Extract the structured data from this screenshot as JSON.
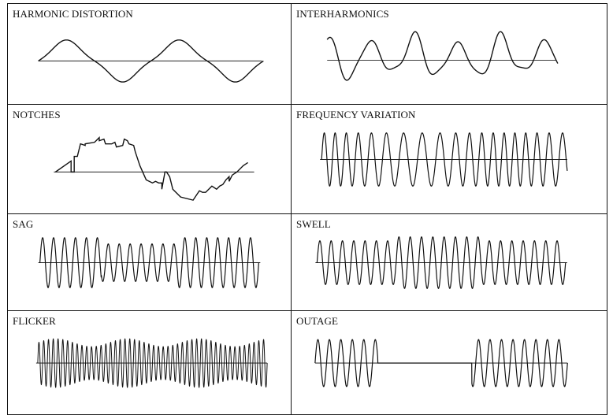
{
  "panels": [
    {
      "id": "harmonic",
      "label": "HARMONIC DISTORTION"
    },
    {
      "id": "interharmonics",
      "label": "INTERHARMONICS"
    },
    {
      "id": "notches",
      "label": "NOTCHES"
    },
    {
      "id": "frequency",
      "label": "FREQUENCY VARIATION"
    },
    {
      "id": "sag",
      "label": "SAG"
    },
    {
      "id": "swell",
      "label": "SWELL"
    },
    {
      "id": "flicker",
      "label": "FLICKER"
    },
    {
      "id": "outage",
      "label": "OUTAGE"
    }
  ]
}
